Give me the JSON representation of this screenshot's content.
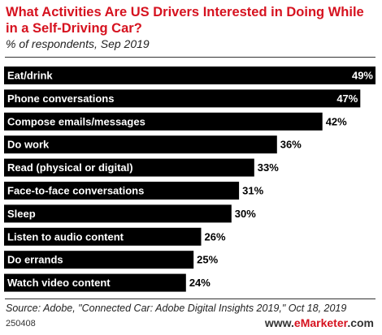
{
  "header": {
    "title": "What Activities Are US Drivers Interested in Doing While in a Self-Driving Car?",
    "subtitle": "% of respondents, Sep 2019"
  },
  "chart_data": {
    "type": "bar",
    "orientation": "horizontal",
    "categories": [
      "Eat/drink",
      "Phone conversations",
      "Compose emails/messages",
      "Do work",
      "Read (physical or digital)",
      "Face-to-face conversations",
      "Sleep",
      "Listen to audio content",
      "Do errands",
      "Watch video content"
    ],
    "values": [
      49,
      47,
      42,
      36,
      33,
      31,
      30,
      26,
      25,
      24
    ],
    "value_labels": [
      "49%",
      "47%",
      "42%",
      "36%",
      "33%",
      "31%",
      "30%",
      "26%",
      "25%",
      "24%"
    ],
    "bar_color": "#000000",
    "category_label_color": "#ffffff",
    "xlim": [
      0,
      49
    ],
    "grid": false,
    "legend": false
  },
  "footer": {
    "source": "Source: Adobe, \"Connected Car: Adobe Digital Insights 2019,\" Oct 18, 2019",
    "chart_id": "250408",
    "brand_prefix": "www.",
    "brand_name": "eMarketer",
    "brand_suffix": ".com"
  },
  "colors": {
    "title": "#d6121f",
    "bars": "#000000",
    "rules": "#333333"
  }
}
